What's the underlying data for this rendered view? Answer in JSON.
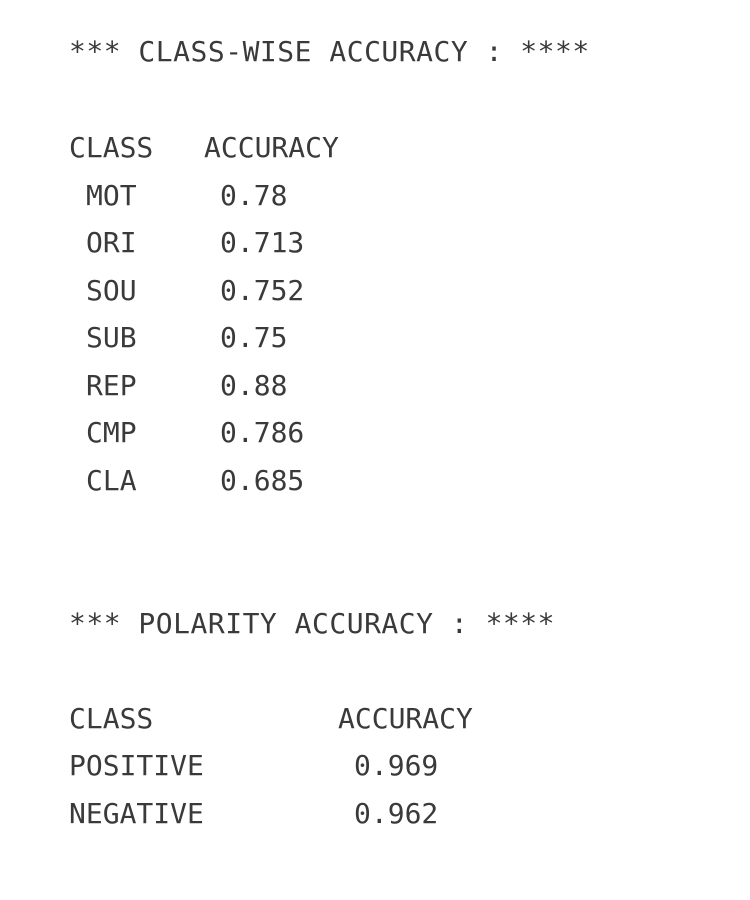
{
  "class_wise": {
    "title": "*** CLASS-WISE ACCURACY : ****",
    "header": {
      "class": "CLASS",
      "accuracy": "ACCURACY"
    },
    "rows": [
      {
        "class": "MOT",
        "accuracy": "0.78"
      },
      {
        "class": "ORI",
        "accuracy": "0.713"
      },
      {
        "class": "SOU",
        "accuracy": "0.752"
      },
      {
        "class": "SUB",
        "accuracy": "0.75"
      },
      {
        "class": "REP",
        "accuracy": "0.88"
      },
      {
        "class": "CMP",
        "accuracy": "0.786"
      },
      {
        "class": "CLA",
        "accuracy": "0.685"
      }
    ]
  },
  "polarity": {
    "title": "*** POLARITY ACCURACY : ****",
    "header": {
      "class": "CLASS",
      "accuracy": "ACCURACY"
    },
    "rows": [
      {
        "class": "POSITIVE",
        "accuracy": "0.969"
      },
      {
        "class": "NEGATIVE",
        "accuracy": "0.962"
      }
    ]
  }
}
